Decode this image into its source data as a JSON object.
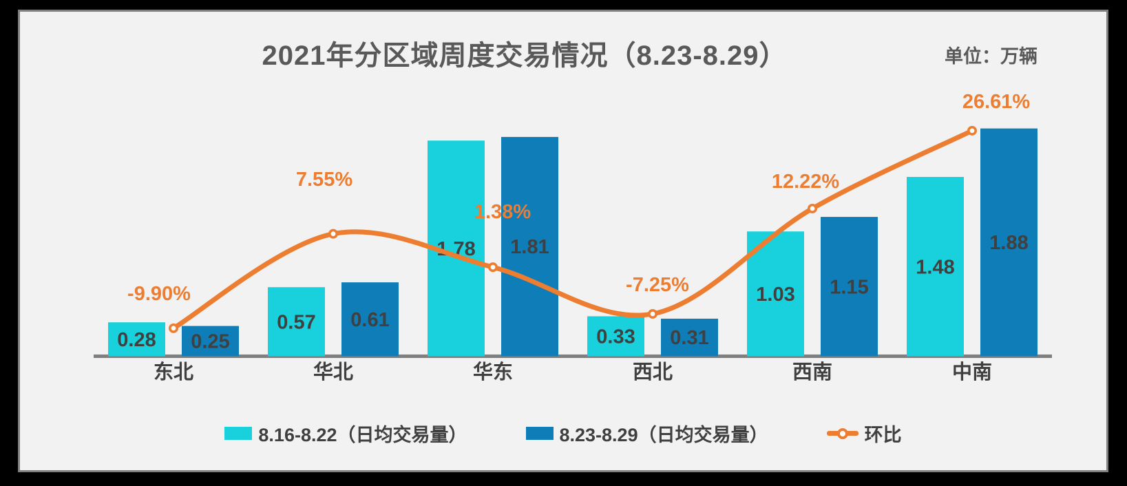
{
  "header": {
    "title": "2021年分区域周度交易情况（8.23-8.29）",
    "unit_label": "单位：万辆"
  },
  "chart_data": {
    "type": "bar",
    "subtype": "grouped-bars-with-line-overlay",
    "title": "2021年分区域周度交易情况（8.23-8.29）",
    "value_unit": "万辆",
    "categories": [
      "东北",
      "华北",
      "华东",
      "西北",
      "西南",
      "中南"
    ],
    "series": [
      {
        "name": "8.16-8.22（日均交易量）",
        "type": "bar",
        "color": "#18D1DC",
        "values": [
          0.28,
          0.57,
          1.78,
          0.33,
          1.03,
          1.48
        ],
        "labels": [
          "0.28",
          "0.57",
          "1.78",
          "0.33",
          "1.03",
          "1.48"
        ]
      },
      {
        "name": "8.23-8.29（日均交易量）",
        "type": "bar",
        "color": "#0E7DB8",
        "values": [
          0.25,
          0.61,
          1.81,
          0.31,
          1.15,
          1.88
        ],
        "labels": [
          "0.25",
          "0.61",
          "1.81",
          "0.31",
          "1.15",
          "1.88"
        ]
      },
      {
        "name": "环比",
        "type": "line",
        "color": "#ED7D31",
        "marker": "circle-white-fill",
        "values": [
          -9.9,
          7.55,
          1.38,
          -7.25,
          12.22,
          26.61
        ],
        "labels": [
          "-9.90%",
          "7.55%",
          "1.38%",
          "-7.25%",
          "12.22%",
          "26.61%"
        ]
      }
    ],
    "ylim_bars": [
      0,
      2.0
    ],
    "ylim_line_pct": [
      -15,
      30
    ],
    "grid": false,
    "legend_position": "bottom",
    "value_labels_shown": true
  },
  "colors": {
    "page_bg": "#000000",
    "panel_bg": "#F2F2F2",
    "panel_border": "#808080",
    "axis": "#7F7F7F",
    "bar_series_1": "#18D1DC",
    "bar_series_2": "#0E7DB8",
    "line_series": "#ED7D31",
    "value_text": "#404040",
    "title_text": "#595959"
  }
}
